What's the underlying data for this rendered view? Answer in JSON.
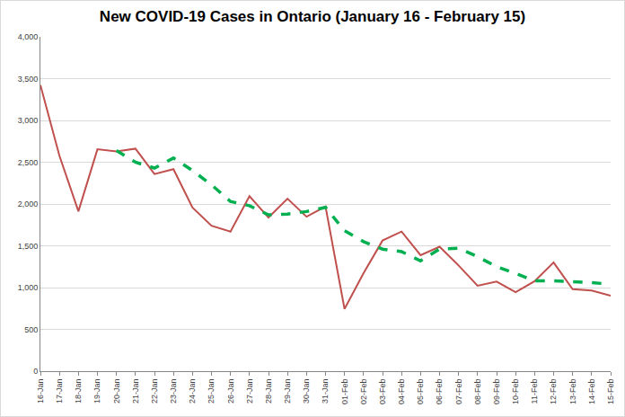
{
  "chart_data": {
    "type": "line",
    "title": "New COVID-19 Cases in Ontario (January 16 - February 15)",
    "categories": [
      "16-Jan",
      "17-Jan",
      "18-Jan",
      "19-Jan",
      "20-Jan",
      "21-Jan",
      "22-Jan",
      "23-Jan",
      "24-Jan",
      "25-Jan",
      "26-Jan",
      "27-Jan",
      "28-Jan",
      "29-Jan",
      "30-Jan",
      "31-Jan",
      "01-Feb",
      "02-Feb",
      "03-Feb",
      "04-Feb",
      "05-Feb",
      "06-Feb",
      "07-Feb",
      "08-Feb",
      "09-Feb",
      "10-Feb",
      "11-Feb",
      "12-Feb",
      "13-Feb",
      "14-Feb",
      "15-Feb"
    ],
    "series": [
      {
        "color": "#c0504d",
        "line_style": "solid",
        "values": [
          3422,
          2578,
          1913,
          2655,
          2630,
          2662,
          2359,
          2417,
          1958,
          1740,
          1670,
          2093,
          1838,
          2063,
          1848,
          1969,
          745,
          1172,
          1563,
          1670,
          1388,
          1489,
          1265,
          1023,
          1072,
          945,
          1076,
          1300,
          980,
          964,
          904
        ]
      },
      {
        "color": "#00b050",
        "line_style": "dash",
        "values": [
          null,
          null,
          null,
          null,
          2640,
          2500,
          2430,
          2550,
          2400,
          2230,
          2030,
          1980,
          1870,
          1880,
          1910,
          1960,
          1680,
          1550,
          1460,
          1430,
          1320,
          1460,
          1470,
          1370,
          1250,
          1170,
          1080,
          1080,
          1070,
          1060,
          1040
        ]
      }
    ],
    "ylim": [
      0,
      4000
    ],
    "yticks": [
      0,
      500,
      {
        "value": 1000,
        "label": "1,000"
      },
      {
        "value": 1500,
        "label": "1,500"
      },
      {
        "value": 2000,
        "label": "2,000"
      },
      {
        "value": 2500,
        "label": "2,500"
      },
      {
        "value": 3000,
        "label": "3,000"
      },
      {
        "value": 3500,
        "label": "3,500"
      },
      {
        "value": 4000,
        "label": "4,000"
      }
    ],
    "grid": true
  }
}
